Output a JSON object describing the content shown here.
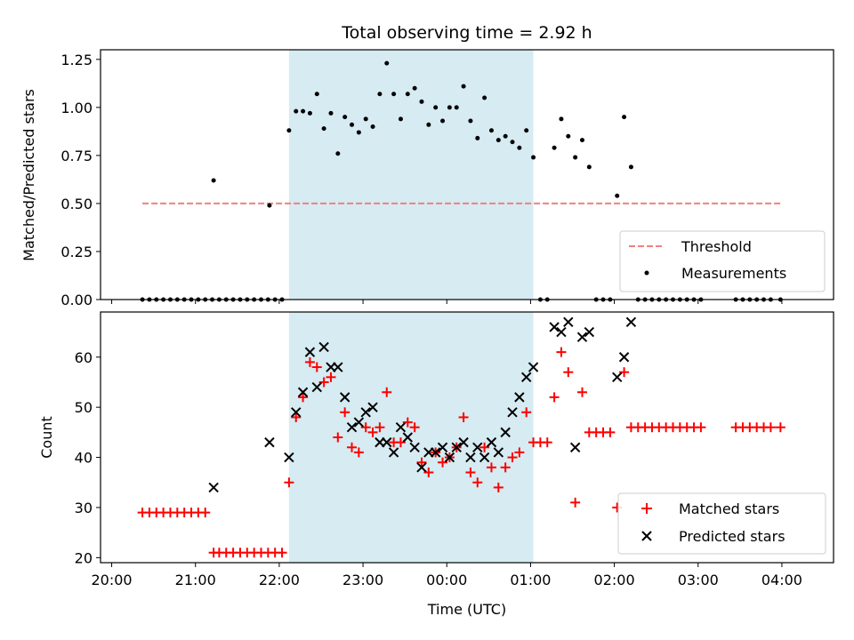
{
  "chart_data": [
    {
      "type": "scatter",
      "title": "Total observing time = 2.92 h",
      "ylabel": "Matched/Predicted stars",
      "xlabel": "",
      "ylim": [
        0,
        1.3
      ],
      "yticks": [
        0.0,
        0.25,
        0.5,
        0.75,
        1.0,
        1.25
      ],
      "ytick_labels": [
        "0.00",
        "0.25",
        "0.50",
        "0.75",
        "1.00",
        "1.25"
      ],
      "observing_window": [
        "22:07",
        "01:02"
      ],
      "legend": {
        "position": "lower-right",
        "entries": [
          "Threshold",
          "Measurements"
        ]
      },
      "series": [
        {
          "name": "Threshold",
          "style": "dashed-line",
          "color": "#f08080",
          "points": [
            [
              "20:22",
              0.5
            ],
            [
              "03:59",
              0.5
            ]
          ]
        },
        {
          "name": "Measurements",
          "style": "dot",
          "color": "#000000",
          "points": [
            [
              "20:22",
              0
            ],
            [
              "20:27",
              0
            ],
            [
              "20:32",
              0
            ],
            [
              "20:37",
              0
            ],
            [
              "20:42",
              0
            ],
            [
              "20:47",
              0
            ],
            [
              "20:52",
              0
            ],
            [
              "20:57",
              0
            ],
            [
              "21:02",
              0
            ],
            [
              "21:07",
              0
            ],
            [
              "21:12",
              0
            ],
            [
              "21:13",
              0.62
            ],
            [
              "21:17",
              0
            ],
            [
              "21:22",
              0
            ],
            [
              "21:27",
              0
            ],
            [
              "21:32",
              0
            ],
            [
              "21:37",
              0
            ],
            [
              "21:42",
              0
            ],
            [
              "21:47",
              0
            ],
            [
              "21:52",
              0
            ],
            [
              "21:53",
              0.49
            ],
            [
              "21:57",
              0
            ],
            [
              "22:02",
              0
            ],
            [
              "22:07",
              0.88
            ],
            [
              "22:12",
              0.98
            ],
            [
              "22:17",
              0.98
            ],
            [
              "22:22",
              0.97
            ],
            [
              "22:27",
              1.07
            ],
            [
              "22:32",
              0.89
            ],
            [
              "22:37",
              0.97
            ],
            [
              "22:42",
              0.76
            ],
            [
              "22:47",
              0.95
            ],
            [
              "22:52",
              0.91
            ],
            [
              "22:57",
              0.87
            ],
            [
              "23:02",
              0.94
            ],
            [
              "23:07",
              0.9
            ],
            [
              "23:12",
              1.07
            ],
            [
              "23:17",
              1.23
            ],
            [
              "23:22",
              1.07
            ],
            [
              "23:27",
              0.94
            ],
            [
              "23:32",
              1.07
            ],
            [
              "23:37",
              1.1
            ],
            [
              "23:42",
              1.03
            ],
            [
              "23:47",
              0.91
            ],
            [
              "23:52",
              1.0
            ],
            [
              "23:57",
              0.93
            ],
            [
              "00:02",
              1.0
            ],
            [
              "00:07",
              1.0
            ],
            [
              "00:12",
              1.11
            ],
            [
              "00:17",
              0.93
            ],
            [
              "00:22",
              0.84
            ],
            [
              "00:27",
              1.05
            ],
            [
              "00:32",
              0.88
            ],
            [
              "00:37",
              0.83
            ],
            [
              "00:42",
              0.85
            ],
            [
              "00:47",
              0.82
            ],
            [
              "00:52",
              0.79
            ],
            [
              "00:57",
              0.88
            ],
            [
              "01:02",
              0.74
            ],
            [
              "01:07",
              0
            ],
            [
              "01:12",
              0
            ],
            [
              "01:17",
              0.79
            ],
            [
              "01:22",
              0.94
            ],
            [
              "01:27",
              0.85
            ],
            [
              "01:32",
              0.74
            ],
            [
              "01:37",
              0.83
            ],
            [
              "01:42",
              0.69
            ],
            [
              "01:47",
              0
            ],
            [
              "01:52",
              0
            ],
            [
              "01:57",
              0
            ],
            [
              "02:02",
              0.54
            ],
            [
              "02:07",
              0.95
            ],
            [
              "02:12",
              0.69
            ],
            [
              "02:17",
              0
            ],
            [
              "02:22",
              0
            ],
            [
              "02:27",
              0
            ],
            [
              "02:32",
              0
            ],
            [
              "02:37",
              0
            ],
            [
              "02:42",
              0
            ],
            [
              "02:47",
              0
            ],
            [
              "02:52",
              0
            ],
            [
              "02:57",
              0
            ],
            [
              "03:02",
              0
            ],
            [
              "03:27",
              0
            ],
            [
              "03:32",
              0
            ],
            [
              "03:37",
              0
            ],
            [
              "03:42",
              0
            ],
            [
              "03:47",
              0
            ],
            [
              "03:52",
              0
            ],
            [
              "03:59",
              0
            ]
          ]
        }
      ]
    },
    {
      "type": "scatter",
      "title": "",
      "ylabel": "Count",
      "xlabel": "Time (UTC)",
      "ylim": [
        19,
        69
      ],
      "yticks": [
        20,
        30,
        40,
        50,
        60
      ],
      "ytick_labels": [
        "20",
        "30",
        "40",
        "50",
        "60"
      ],
      "xtick_labels": [
        "20:00",
        "21:00",
        "22:00",
        "23:00",
        "00:00",
        "01:00",
        "02:00",
        "03:00",
        "04:00"
      ],
      "observing_window": [
        "22:07",
        "01:02"
      ],
      "legend": {
        "position": "lower-right",
        "entries": [
          "Matched stars",
          "Predicted stars"
        ]
      },
      "series": [
        {
          "name": "Matched stars",
          "style": "plus",
          "color": "#ff0000",
          "points": [
            [
              "20:22",
              29
            ],
            [
              "20:27",
              29
            ],
            [
              "20:32",
              29
            ],
            [
              "20:37",
              29
            ],
            [
              "20:42",
              29
            ],
            [
              "20:47",
              29
            ],
            [
              "20:52",
              29
            ],
            [
              "20:57",
              29
            ],
            [
              "21:02",
              29
            ],
            [
              "21:07",
              29
            ],
            [
              "21:13",
              21
            ],
            [
              "21:17",
              21
            ],
            [
              "21:22",
              21
            ],
            [
              "21:27",
              21
            ],
            [
              "21:32",
              21
            ],
            [
              "21:37",
              21
            ],
            [
              "21:42",
              21
            ],
            [
              "21:47",
              21
            ],
            [
              "21:52",
              21
            ],
            [
              "21:57",
              21
            ],
            [
              "22:02",
              21
            ],
            [
              "22:07",
              35
            ],
            [
              "22:12",
              48
            ],
            [
              "22:17",
              52
            ],
            [
              "22:22",
              59
            ],
            [
              "22:27",
              58
            ],
            [
              "22:32",
              55
            ],
            [
              "22:37",
              56
            ],
            [
              "22:42",
              44
            ],
            [
              "22:47",
              49
            ],
            [
              "22:52",
              42
            ],
            [
              "22:57",
              41
            ],
            [
              "23:02",
              46
            ],
            [
              "23:07",
              45
            ],
            [
              "23:12",
              46
            ],
            [
              "23:17",
              53
            ],
            [
              "23:22",
              43
            ],
            [
              "23:27",
              43
            ],
            [
              "23:32",
              47
            ],
            [
              "23:37",
              46
            ],
            [
              "23:42",
              39
            ],
            [
              "23:47",
              37
            ],
            [
              "23:52",
              41
            ],
            [
              "23:57",
              39
            ],
            [
              "00:02",
              40
            ],
            [
              "00:07",
              42
            ],
            [
              "00:12",
              48
            ],
            [
              "00:17",
              37
            ],
            [
              "00:22",
              35
            ],
            [
              "00:27",
              42
            ],
            [
              "00:32",
              38
            ],
            [
              "00:37",
              34
            ],
            [
              "00:42",
              38
            ],
            [
              "00:47",
              40
            ],
            [
              "00:52",
              41
            ],
            [
              "00:57",
              49
            ],
            [
              "01:02",
              43
            ],
            [
              "01:07",
              43
            ],
            [
              "01:12",
              43
            ],
            [
              "01:17",
              52
            ],
            [
              "01:22",
              61
            ],
            [
              "01:27",
              57
            ],
            [
              "01:32",
              31
            ],
            [
              "01:37",
              53
            ],
            [
              "01:42",
              45
            ],
            [
              "01:47",
              45
            ],
            [
              "01:52",
              45
            ],
            [
              "01:57",
              45
            ],
            [
              "02:02",
              30
            ],
            [
              "02:07",
              57
            ],
            [
              "02:12",
              46
            ],
            [
              "02:17",
              46
            ],
            [
              "02:22",
              46
            ],
            [
              "02:27",
              46
            ],
            [
              "02:32",
              46
            ],
            [
              "02:37",
              46
            ],
            [
              "02:42",
              46
            ],
            [
              "02:47",
              46
            ],
            [
              "02:52",
              46
            ],
            [
              "02:57",
              46
            ],
            [
              "03:02",
              46
            ],
            [
              "03:27",
              46
            ],
            [
              "03:32",
              46
            ],
            [
              "03:37",
              46
            ],
            [
              "03:42",
              46
            ],
            [
              "03:47",
              46
            ],
            [
              "03:52",
              46
            ],
            [
              "03:59",
              46
            ]
          ]
        },
        {
          "name": "Predicted stars",
          "style": "x",
          "color": "#000000",
          "points": [
            [
              "21:13",
              34
            ],
            [
              "21:53",
              43
            ],
            [
              "22:07",
              40
            ],
            [
              "22:12",
              49
            ],
            [
              "22:17",
              53
            ],
            [
              "22:22",
              61
            ],
            [
              "22:27",
              54
            ],
            [
              "22:32",
              62
            ],
            [
              "22:37",
              58
            ],
            [
              "22:42",
              58
            ],
            [
              "22:47",
              52
            ],
            [
              "22:52",
              46
            ],
            [
              "22:57",
              47
            ],
            [
              "23:02",
              49
            ],
            [
              "23:07",
              50
            ],
            [
              "23:12",
              43
            ],
            [
              "23:17",
              43
            ],
            [
              "23:22",
              41
            ],
            [
              "23:27",
              46
            ],
            [
              "23:32",
              44
            ],
            [
              "23:37",
              42
            ],
            [
              "23:42",
              38
            ],
            [
              "23:47",
              41
            ],
            [
              "23:52",
              41
            ],
            [
              "23:57",
              42
            ],
            [
              "00:02",
              40
            ],
            [
              "00:07",
              42
            ],
            [
              "00:12",
              43
            ],
            [
              "00:17",
              40
            ],
            [
              "00:22",
              42
            ],
            [
              "00:27",
              40
            ],
            [
              "00:32",
              43
            ],
            [
              "00:37",
              41
            ],
            [
              "00:42",
              45
            ],
            [
              "00:47",
              49
            ],
            [
              "00:52",
              52
            ],
            [
              "00:57",
              56
            ],
            [
              "01:02",
              58
            ],
            [
              "01:17",
              66
            ],
            [
              "01:22",
              65
            ],
            [
              "01:27",
              67
            ],
            [
              "01:32",
              42
            ],
            [
              "01:37",
              64
            ],
            [
              "01:42",
              65
            ],
            [
              "02:02",
              56
            ],
            [
              "02:07",
              60
            ],
            [
              "02:12",
              67
            ]
          ]
        }
      ]
    }
  ]
}
